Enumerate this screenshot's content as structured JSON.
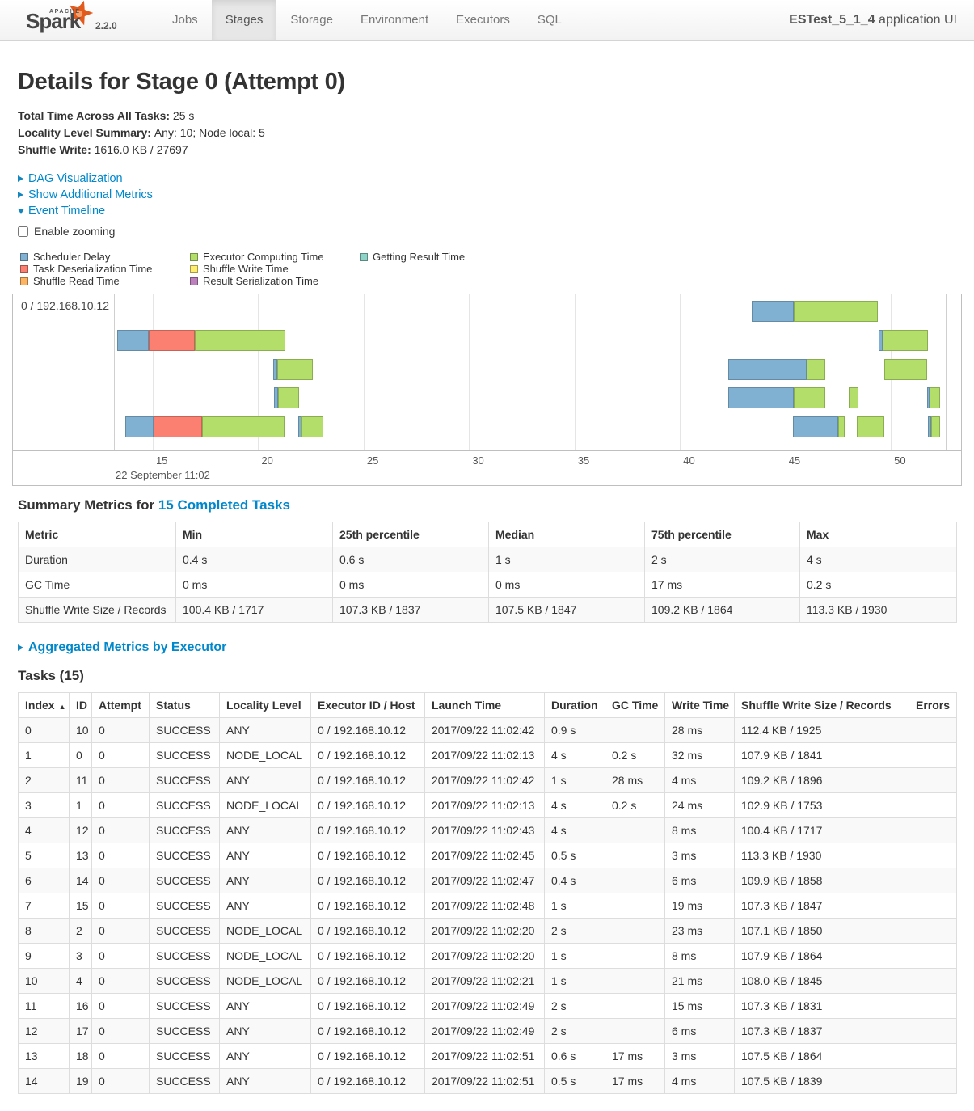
{
  "navbar": {
    "brand": {
      "apache": "APACHE",
      "name": "Spark",
      "version": "2.2.0"
    },
    "tabs": [
      {
        "label": "Jobs",
        "active": false
      },
      {
        "label": "Stages",
        "active": true
      },
      {
        "label": "Storage",
        "active": false
      },
      {
        "label": "Environment",
        "active": false
      },
      {
        "label": "Executors",
        "active": false
      },
      {
        "label": "SQL",
        "active": false
      }
    ],
    "app_name": "ESTest_5_1_4",
    "app_title_suffix": " application UI"
  },
  "page": {
    "title": "Details for Stage 0 (Attempt 0)",
    "summary": [
      {
        "label": "Total Time Across All Tasks:",
        "value": "25 s"
      },
      {
        "label": "Locality Level Summary:",
        "value": "Any: 10; Node local: 5"
      },
      {
        "label": "Shuffle Write:",
        "value": "1616.0 KB / 27697"
      }
    ],
    "toggles": [
      {
        "arrow": "closed",
        "label": "DAG Visualization"
      },
      {
        "arrow": "closed",
        "label": "Show Additional Metrics"
      },
      {
        "arrow": "open",
        "label": "Event Timeline"
      }
    ],
    "enable_zooming_label": "Enable zooming"
  },
  "legend": {
    "columns": [
      [
        {
          "label": "Scheduler Delay",
          "color": "#80B1D3"
        },
        {
          "label": "Task Deserialization Time",
          "color": "#FB8072"
        },
        {
          "label": "Shuffle Read Time",
          "color": "#FDB462"
        }
      ],
      [
        {
          "label": "Executor Computing Time",
          "color": "#B3DE69"
        },
        {
          "label": "Shuffle Write Time",
          "color": "#FFED6F"
        },
        {
          "label": "Result Serialization Time",
          "color": "#BC80BD"
        }
      ],
      [
        {
          "label": "Getting Result Time",
          "color": "#8DD3C7"
        }
      ]
    ]
  },
  "chart_data": {
    "type": "timeline",
    "title": "Event Timeline",
    "group_label": "0 / 192.168.10.12",
    "x_unit": "seconds within minute 11:02",
    "x_range": [
      13.2,
      52.6
    ],
    "x_ticks": [
      15,
      20,
      25,
      30,
      35,
      40,
      45,
      50
    ],
    "x_context_label": "22 September 11:02",
    "palette": {
      "scheduler_delay": "#80B1D3",
      "task_deserialization": "#FB8072",
      "shuffle_read": "#FDB462",
      "executor_computing": "#B3DE69",
      "shuffle_write": "#FFED6F",
      "result_serialization": "#BC80BD",
      "getting_result": "#8DD3C7"
    },
    "rows": [
      [
        {
          "segments": [
            [
              "scheduler_delay",
              43.4,
              45.4
            ],
            [
              "executor_computing",
              45.4,
              49.4
            ]
          ]
        }
      ],
      [
        {
          "segments": [
            [
              "scheduler_delay",
              13.3,
              14.8
            ],
            [
              "task_deserialization",
              14.8,
              17.0
            ],
            [
              "executor_computing",
              17.0,
              21.3
            ]
          ]
        },
        {
          "segments": [
            [
              "scheduler_delay",
              49.4,
              49.6
            ],
            [
              "executor_computing",
              49.6,
              51.75
            ]
          ]
        }
      ],
      [
        {
          "segments": [
            [
              "scheduler_delay",
              20.7,
              20.9
            ],
            [
              "executor_computing",
              20.9,
              22.6
            ]
          ]
        },
        {
          "segments": [
            [
              "scheduler_delay",
              42.3,
              46.0
            ],
            [
              "executor_computing",
              46.0,
              46.9
            ]
          ]
        },
        {
          "segments": [
            [
              "executor_computing",
              49.7,
              51.7
            ]
          ]
        }
      ],
      [
        {
          "segments": [
            [
              "scheduler_delay",
              20.75,
              20.95
            ],
            [
              "executor_computing",
              20.95,
              21.95
            ]
          ]
        },
        {
          "segments": [
            [
              "scheduler_delay",
              42.3,
              45.4
            ],
            [
              "executor_computing",
              45.4,
              46.9
            ]
          ]
        },
        {
          "segments": [
            [
              "executor_computing",
              48.0,
              48.45
            ]
          ]
        },
        {
          "segments": [
            [
              "scheduler_delay",
              51.7,
              51.85
            ],
            [
              "executor_computing",
              51.85,
              52.35
            ]
          ]
        }
      ],
      [
        {
          "segments": [
            [
              "scheduler_delay",
              13.7,
              15.05
            ],
            [
              "task_deserialization",
              15.05,
              17.35
            ],
            [
              "executor_computing",
              17.35,
              21.25
            ]
          ]
        },
        {
          "segments": [
            [
              "scheduler_delay",
              21.9,
              22.05
            ],
            [
              "executor_computing",
              22.05,
              23.1
            ]
          ]
        },
        {
          "segments": [
            [
              "scheduler_delay",
              45.35,
              47.5
            ],
            [
              "executor_computing",
              47.5,
              47.8
            ]
          ]
        },
        {
          "segments": [
            [
              "executor_computing",
              48.4,
              49.7
            ]
          ]
        },
        {
          "segments": [
            [
              "scheduler_delay",
              51.75,
              51.9
            ],
            [
              "executor_computing",
              51.9,
              52.35
            ]
          ]
        }
      ]
    ]
  },
  "summary_metrics": {
    "heading_prefix": "Summary Metrics for ",
    "heading_link": "15 Completed Tasks",
    "columns": [
      "Metric",
      "Min",
      "25th percentile",
      "Median",
      "75th percentile",
      "Max"
    ],
    "rows": [
      [
        "Duration",
        "0.4 s",
        "0.6 s",
        "1 s",
        "2 s",
        "4 s"
      ],
      [
        "GC Time",
        "0 ms",
        "0 ms",
        "0 ms",
        "17 ms",
        "0.2 s"
      ],
      [
        "Shuffle Write Size / Records",
        "100.4 KB / 1717",
        "107.3 KB / 1837",
        "107.5 KB / 1847",
        "109.2 KB / 1864",
        "113.3 KB / 1930"
      ]
    ]
  },
  "aggregated_link": {
    "label": "Aggregated Metrics by Executor"
  },
  "tasks": {
    "heading": "Tasks (15)",
    "sort_arrow": "▲",
    "sort_column_index": 0,
    "columns": [
      "Index",
      "ID",
      "Attempt",
      "Status",
      "Locality Level",
      "Executor ID / Host",
      "Launch Time",
      "Duration",
      "GC Time",
      "Write Time",
      "Shuffle Write Size / Records",
      "Errors"
    ],
    "rows": [
      [
        "0",
        "10",
        "0",
        "SUCCESS",
        "ANY",
        "0 / 192.168.10.12",
        "2017/09/22 11:02:42",
        "0.9 s",
        "",
        "28 ms",
        "112.4 KB / 1925",
        ""
      ],
      [
        "1",
        "0",
        "0",
        "SUCCESS",
        "NODE_LOCAL",
        "0 / 192.168.10.12",
        "2017/09/22 11:02:13",
        "4 s",
        "0.2 s",
        "32 ms",
        "107.9 KB / 1841",
        ""
      ],
      [
        "2",
        "11",
        "0",
        "SUCCESS",
        "ANY",
        "0 / 192.168.10.12",
        "2017/09/22 11:02:42",
        "1 s",
        "28 ms",
        "4 ms",
        "109.2 KB / 1896",
        ""
      ],
      [
        "3",
        "1",
        "0",
        "SUCCESS",
        "NODE_LOCAL",
        "0 / 192.168.10.12",
        "2017/09/22 11:02:13",
        "4 s",
        "0.2 s",
        "24 ms",
        "102.9 KB / 1753",
        ""
      ],
      [
        "4",
        "12",
        "0",
        "SUCCESS",
        "ANY",
        "0 / 192.168.10.12",
        "2017/09/22 11:02:43",
        "4 s",
        "",
        "8 ms",
        "100.4 KB / 1717",
        ""
      ],
      [
        "5",
        "13",
        "0",
        "SUCCESS",
        "ANY",
        "0 / 192.168.10.12",
        "2017/09/22 11:02:45",
        "0.5 s",
        "",
        "3 ms",
        "113.3 KB / 1930",
        ""
      ],
      [
        "6",
        "14",
        "0",
        "SUCCESS",
        "ANY",
        "0 / 192.168.10.12",
        "2017/09/22 11:02:47",
        "0.4 s",
        "",
        "6 ms",
        "109.9 KB / 1858",
        ""
      ],
      [
        "7",
        "15",
        "0",
        "SUCCESS",
        "ANY",
        "0 / 192.168.10.12",
        "2017/09/22 11:02:48",
        "1 s",
        "",
        "19 ms",
        "107.3 KB / 1847",
        ""
      ],
      [
        "8",
        "2",
        "0",
        "SUCCESS",
        "NODE_LOCAL",
        "0 / 192.168.10.12",
        "2017/09/22 11:02:20",
        "2 s",
        "",
        "23 ms",
        "107.1 KB / 1850",
        ""
      ],
      [
        "9",
        "3",
        "0",
        "SUCCESS",
        "NODE_LOCAL",
        "0 / 192.168.10.12",
        "2017/09/22 11:02:20",
        "1 s",
        "",
        "8 ms",
        "107.9 KB / 1864",
        ""
      ],
      [
        "10",
        "4",
        "0",
        "SUCCESS",
        "NODE_LOCAL",
        "0 / 192.168.10.12",
        "2017/09/22 11:02:21",
        "1 s",
        "",
        "21 ms",
        "108.0 KB / 1845",
        ""
      ],
      [
        "11",
        "16",
        "0",
        "SUCCESS",
        "ANY",
        "0 / 192.168.10.12",
        "2017/09/22 11:02:49",
        "2 s",
        "",
        "15 ms",
        "107.3 KB / 1831",
        ""
      ],
      [
        "12",
        "17",
        "0",
        "SUCCESS",
        "ANY",
        "0 / 192.168.10.12",
        "2017/09/22 11:02:49",
        "2 s",
        "",
        "6 ms",
        "107.3 KB / 1837",
        ""
      ],
      [
        "13",
        "18",
        "0",
        "SUCCESS",
        "ANY",
        "0 / 192.168.10.12",
        "2017/09/22 11:02:51",
        "0.6 s",
        "17 ms",
        "3 ms",
        "107.5 KB / 1864",
        ""
      ],
      [
        "14",
        "19",
        "0",
        "SUCCESS",
        "ANY",
        "0 / 192.168.10.12",
        "2017/09/22 11:02:51",
        "0.5 s",
        "17 ms",
        "4 ms",
        "107.5 KB / 1839",
        ""
      ]
    ]
  }
}
